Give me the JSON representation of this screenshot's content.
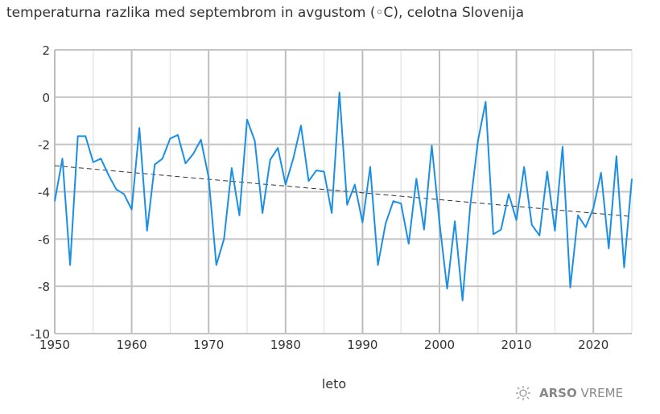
{
  "chart_data": {
    "type": "line",
    "title": "temperaturna razlika med septembrom in avgustom (◦C), celotna Slovenija",
    "xlabel": "leto",
    "ylabel": "",
    "xlim": [
      1950,
      2025
    ],
    "ylim": [
      -10,
      2
    ],
    "xticks": [
      "1950",
      "1960",
      "1970",
      "1980",
      "1990",
      "2000",
      "2010",
      "2020"
    ],
    "yticks": [
      "2",
      "0",
      "-2",
      "-4",
      "-6",
      "-8",
      "-10"
    ],
    "grid": true,
    "series_color": "#1a8fe3",
    "trend_color": "#333333",
    "x": [
      1950,
      1951,
      1952,
      1953,
      1954,
      1955,
      1956,
      1957,
      1958,
      1959,
      1960,
      1961,
      1962,
      1963,
      1964,
      1965,
      1966,
      1967,
      1968,
      1969,
      1970,
      1971,
      1972,
      1973,
      1974,
      1975,
      1976,
      1977,
      1978,
      1979,
      1980,
      1981,
      1982,
      1983,
      1984,
      1985,
      1986,
      1987,
      1988,
      1989,
      1990,
      1991,
      1992,
      1993,
      1994,
      1995,
      1996,
      1997,
      1998,
      1999,
      2000,
      2001,
      2002,
      2003,
      2004,
      2005,
      2006,
      2007,
      2008,
      2009,
      2010,
      2011,
      2012,
      2013,
      2014,
      2015,
      2016,
      2017,
      2018,
      2019,
      2020,
      2021,
      2022,
      2023,
      2024,
      2025
    ],
    "values": [
      -4.4,
      -2.6,
      -7.1,
      -1.65,
      -1.65,
      -2.75,
      -2.6,
      -3.3,
      -3.9,
      -4.1,
      -4.75,
      -1.3,
      -5.65,
      -2.85,
      -2.6,
      -1.75,
      -1.6,
      -2.8,
      -2.4,
      -1.8,
      -3.4,
      -7.1,
      -6.0,
      -3.0,
      -5.0,
      -0.95,
      -1.85,
      -4.9,
      -2.65,
      -2.15,
      -3.7,
      -2.6,
      -1.2,
      -3.55,
      -3.1,
      -3.15,
      -4.9,
      0.2,
      -4.55,
      -3.7,
      -5.3,
      -2.95,
      -7.1,
      -5.35,
      -4.4,
      -4.5,
      -6.2,
      -3.45,
      -5.6,
      -2.05,
      -5.3,
      -8.1,
      -5.25,
      -8.6,
      -4.6,
      -1.85,
      -0.2,
      -5.8,
      -5.6,
      -4.1,
      -5.2,
      -2.95,
      -5.4,
      -5.85,
      -3.15,
      -5.65,
      -2.1,
      -8.05,
      -5.0,
      -5.5,
      -4.7,
      -3.2,
      -6.4,
      -2.5,
      -7.2,
      -3.45
    ],
    "trend": {
      "x": [
        1950,
        2025
      ],
      "y": [
        -2.9,
        -5.05
      ]
    }
  },
  "branding": {
    "logo_bold": "ARSO",
    "logo_light": "VREME",
    "icon": "sun-icon"
  }
}
